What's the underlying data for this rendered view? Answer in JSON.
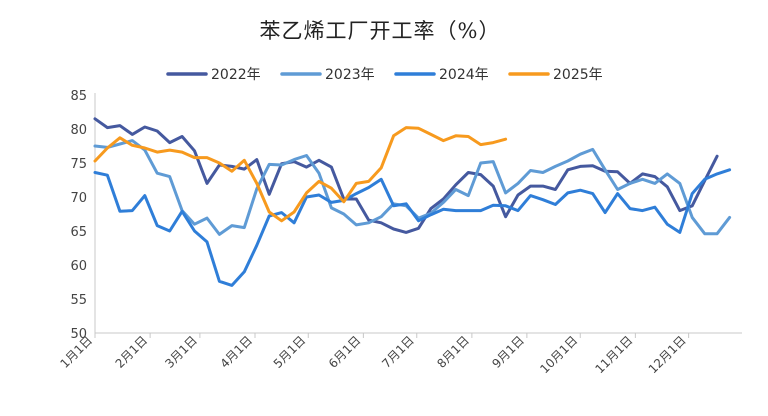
{
  "chart_data": {
    "type": "line",
    "title": "苯乙烯工厂开工率（%）",
    "xlabel": "",
    "ylabel": "",
    "ylim": [
      50,
      85
    ],
    "yticks": [
      50,
      55,
      60,
      65,
      70,
      75,
      80,
      85
    ],
    "xlim": [
      1,
      53
    ],
    "xticks": [
      {
        "week": 1,
        "label": "1月1日"
      },
      {
        "week": 5.43,
        "label": "2月1日"
      },
      {
        "week": 9.43,
        "label": "3月1日"
      },
      {
        "week": 13.86,
        "label": "4月1日"
      },
      {
        "week": 18.14,
        "label": "5月1日"
      },
      {
        "week": 22.57,
        "label": "6月1日"
      },
      {
        "week": 26.86,
        "label": "7月1日"
      },
      {
        "week": 31.29,
        "label": "8月1日"
      },
      {
        "week": 35.71,
        "label": "9月1日"
      },
      {
        "week": 40,
        "label": "10月1日"
      },
      {
        "week": 44.43,
        "label": "11月1日"
      },
      {
        "week": 48.71,
        "label": "12月1日"
      }
    ],
    "grid": false,
    "legend_position": "top-center",
    "series": [
      {
        "name": "2022年",
        "color": "#45599F",
        "values": [
          81.5,
          80.2,
          80.5,
          79.2,
          80.3,
          79.7,
          78.0,
          78.9,
          76.8,
          72.0,
          74.7,
          74.5,
          74.1,
          75.5,
          70.4,
          74.9,
          75.2,
          74.4,
          75.4,
          74.4,
          69.7,
          69.7,
          66.6,
          66.2,
          65.3,
          64.8,
          65.4,
          68.3,
          69.7,
          71.8,
          73.6,
          73.3,
          71.6,
          67.1,
          70.3,
          71.6,
          71.6,
          71.1,
          74.0,
          74.5,
          74.6,
          73.8,
          73.7,
          72.0,
          73.4,
          73.0,
          71.5,
          68.0,
          68.7,
          72.4,
          76.0
        ]
      },
      {
        "name": "2023年",
        "color": "#5F9BD5",
        "values": [
          77.5,
          77.3,
          77.8,
          78.3,
          76.9,
          73.5,
          73.0,
          68.0,
          66.0,
          66.9,
          64.5,
          65.8,
          65.5,
          71.2,
          74.8,
          74.7,
          75.5,
          76.1,
          73.5,
          68.4,
          67.5,
          65.9,
          66.2,
          67.1,
          69.0,
          68.7,
          66.9,
          67.6,
          69.2,
          71.1,
          70.2,
          75.0,
          75.2,
          70.6,
          72.0,
          73.9,
          73.6,
          74.5,
          75.3,
          76.3,
          77.0,
          74.0,
          71.1,
          72.0,
          72.6,
          72.0,
          73.4,
          72.0,
          67.0,
          64.6,
          64.6,
          67.0
        ]
      },
      {
        "name": "2024年",
        "color": "#2F7ED8",
        "values": [
          73.6,
          73.2,
          67.9,
          68.0,
          70.2,
          65.8,
          65.0,
          67.9,
          65.0,
          63.4,
          57.6,
          57.0,
          59.0,
          62.9,
          67.2,
          67.7,
          66.2,
          70.0,
          70.3,
          69.2,
          69.5,
          70.5,
          71.4,
          72.6,
          68.7,
          69.0,
          66.5,
          67.4,
          68.2,
          68.0,
          68.0,
          68.0,
          68.8,
          68.7,
          68.0,
          70.2,
          69.6,
          68.9,
          70.6,
          71.0,
          70.5,
          67.7,
          70.5,
          68.3,
          68.0,
          68.5,
          66.0,
          64.8,
          70.5,
          72.6,
          73.4,
          74.0
        ]
      },
      {
        "name": "2025年",
        "color": "#F79A1E",
        "values": [
          75.3,
          77.2,
          78.7,
          77.6,
          77.2,
          76.6,
          76.9,
          76.6,
          75.8,
          75.8,
          75.0,
          73.8,
          75.4,
          72.0,
          67.8,
          66.5,
          67.8,
          70.6,
          72.3,
          71.3,
          69.3,
          72.0,
          72.3,
          74.3,
          79.0,
          80.2,
          80.1,
          79.2,
          78.3,
          79.0,
          78.9,
          77.7,
          78.0,
          78.5
        ]
      }
    ]
  }
}
